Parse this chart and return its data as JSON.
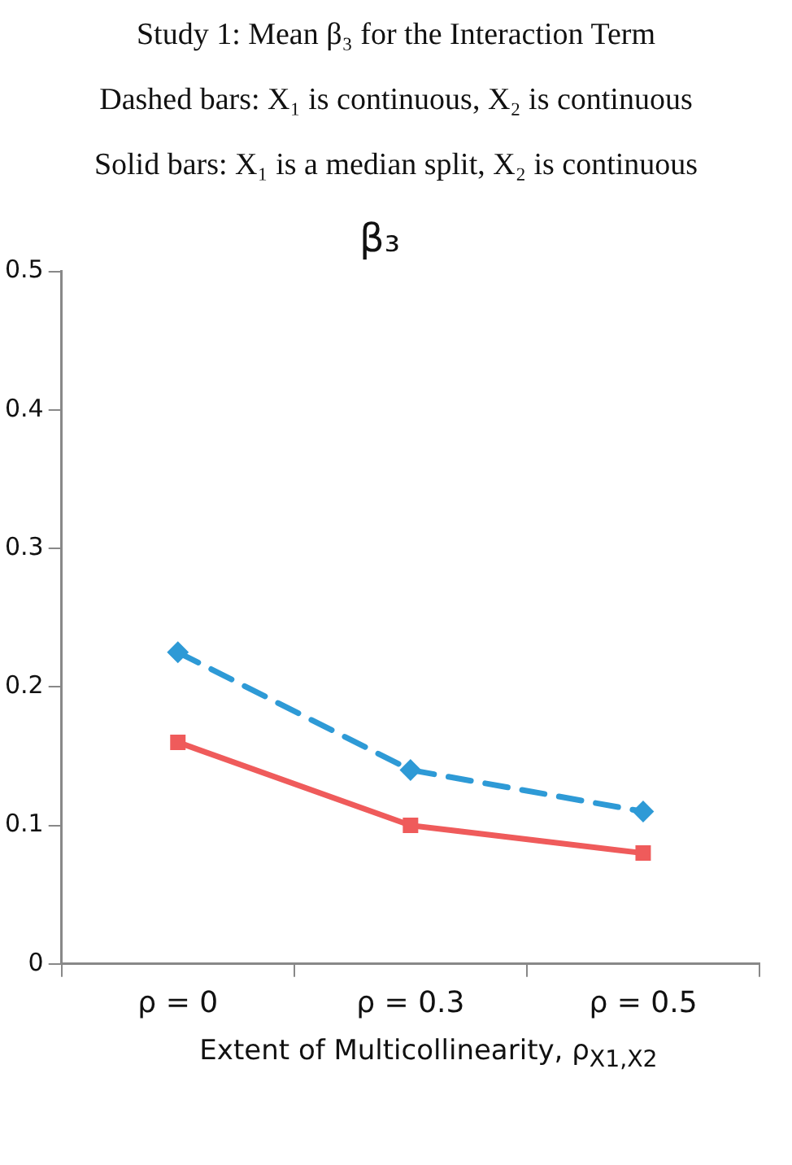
{
  "chart_data": {
    "type": "line",
    "title": "β₃",
    "annotations": [
      "Study 1:  Mean β₃ for the Interaction Term",
      "Dashed bars:   X₁ is continuous, X₂  is continuous",
      "Solid bars:   X₁ is a median split, X₂ is continuous"
    ],
    "xlabel": "Extent of Multicollinearity, ρ$_{X1,X2}$",
    "categories": [
      "ρ = 0",
      "ρ = 0.3",
      "ρ = 0.5"
    ],
    "series": [
      {
        "color": "#2e9ad6",
        "values": [
          0.225,
          0.14,
          0.11
        ],
        "line_style": "dashed",
        "marker": "diamond"
      },
      {
        "color": "#ef5b5b",
        "values": [
          0.16,
          0.1,
          0.08
        ],
        "line_style": "solid",
        "marker": "square"
      }
    ],
    "ylim": [
      0,
      0.5
    ],
    "yticks": [
      0,
      0.1,
      0.2,
      0.3,
      0.4,
      0.5
    ],
    "grid": false,
    "legend": false
  }
}
